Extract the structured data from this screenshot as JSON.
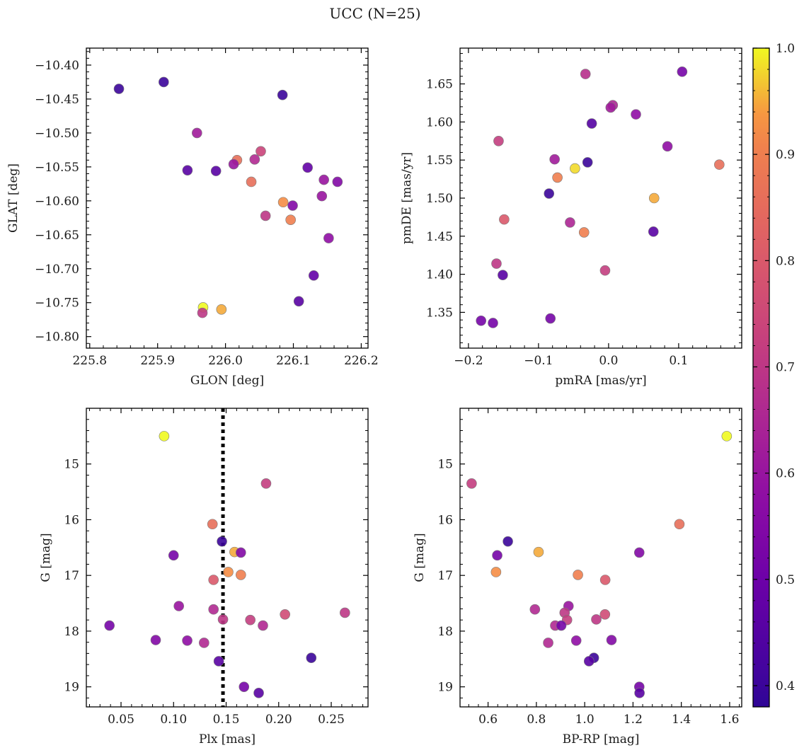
{
  "figure": {
    "suptitle": "UCC (N=25)"
  },
  "colormap": {
    "name": "plasma",
    "min": 0.38,
    "max": 1.0
  },
  "chart_data": [
    {
      "id": "panel-glon-glat",
      "type": "scatter",
      "xlabel": "GLON [deg]",
      "ylabel": "GLAT [deg]",
      "xlim": [
        225.795,
        226.21
      ],
      "ylim": [
        -10.817,
        -10.375
      ],
      "xticks": [
        225.8,
        225.9,
        226.0,
        226.1,
        226.2
      ],
      "xtick_labels": [
        "225.8",
        "225.9",
        "226.0",
        "226.1",
        "226.2"
      ],
      "yticks": [
        -10.8,
        -10.75,
        -10.7,
        -10.65,
        -10.6,
        -10.55,
        -10.5,
        -10.45,
        -10.4
      ],
      "ytick_labels": [
        "−10.80",
        "−10.75",
        "−10.70",
        "−10.65",
        "−10.60",
        "−10.55",
        "−10.50",
        "−10.45",
        "−10.40"
      ],
      "points": [
        {
          "x": 225.843,
          "y": -10.435,
          "c": 0.4
        },
        {
          "x": 225.909,
          "y": -10.425,
          "c": 0.4
        },
        {
          "x": 226.084,
          "y": -10.444,
          "c": 0.4
        },
        {
          "x": 225.958,
          "y": -10.5,
          "c": 0.62
        },
        {
          "x": 226.052,
          "y": -10.527,
          "c": 0.74
        },
        {
          "x": 226.017,
          "y": -10.54,
          "c": 0.86
        },
        {
          "x": 226.043,
          "y": -10.539,
          "c": 0.66
        },
        {
          "x": 226.012,
          "y": -10.546,
          "c": 0.6
        },
        {
          "x": 225.944,
          "y": -10.555,
          "c": 0.46
        },
        {
          "x": 225.986,
          "y": -10.556,
          "c": 0.46
        },
        {
          "x": 226.121,
          "y": -10.551,
          "c": 0.48
        },
        {
          "x": 226.145,
          "y": -10.569,
          "c": 0.6
        },
        {
          "x": 226.165,
          "y": -10.572,
          "c": 0.55
        },
        {
          "x": 226.038,
          "y": -10.572,
          "c": 0.86
        },
        {
          "x": 226.142,
          "y": -10.593,
          "c": 0.6
        },
        {
          "x": 226.085,
          "y": -10.602,
          "c": 0.93
        },
        {
          "x": 226.099,
          "y": -10.607,
          "c": 0.55
        },
        {
          "x": 226.059,
          "y": -10.622,
          "c": 0.7
        },
        {
          "x": 226.096,
          "y": -10.628,
          "c": 0.9
        },
        {
          "x": 226.152,
          "y": -10.655,
          "c": 0.58
        },
        {
          "x": 226.13,
          "y": -10.71,
          "c": 0.48
        },
        {
          "x": 226.108,
          "y": -10.748,
          "c": 0.46
        },
        {
          "x": 225.967,
          "y": -10.757,
          "c": 1.0
        },
        {
          "x": 225.994,
          "y": -10.76,
          "c": 0.95
        },
        {
          "x": 225.966,
          "y": -10.765,
          "c": 0.7
        }
      ]
    },
    {
      "id": "panel-pm",
      "type": "scatter",
      "xlabel": "pmRA [mas/yr]",
      "ylabel": "pmDE [mas/yr]",
      "xlim": [
        -0.212,
        0.19
      ],
      "ylim": [
        1.303,
        1.697
      ],
      "xticks": [
        -0.2,
        -0.1,
        0.0,
        0.1
      ],
      "xtick_labels": [
        "−0.2",
        "−0.1",
        "0.0",
        "0.1"
      ],
      "yticks": [
        1.35,
        1.4,
        1.45,
        1.5,
        1.55,
        1.6,
        1.65
      ],
      "ytick_labels": [
        "1.35",
        "1.40",
        "1.45",
        "1.50",
        "1.55",
        "1.60",
        "1.65"
      ],
      "points": [
        {
          "x": 0.105,
          "y": 1.666,
          "c": 0.52
        },
        {
          "x": -0.033,
          "y": 1.663,
          "c": 0.68
        },
        {
          "x": 0.006,
          "y": 1.622,
          "c": 0.65
        },
        {
          "x": 0.003,
          "y": 1.619,
          "c": 0.62
        },
        {
          "x": 0.039,
          "y": 1.61,
          "c": 0.58
        },
        {
          "x": -0.024,
          "y": 1.598,
          "c": 0.45
        },
        {
          "x": -0.157,
          "y": 1.575,
          "c": 0.72
        },
        {
          "x": 0.084,
          "y": 1.568,
          "c": 0.58
        },
        {
          "x": -0.077,
          "y": 1.551,
          "c": 0.62
        },
        {
          "x": -0.03,
          "y": 1.547,
          "c": 0.4
        },
        {
          "x": 0.158,
          "y": 1.544,
          "c": 0.86
        },
        {
          "x": -0.048,
          "y": 1.539,
          "c": 0.98
        },
        {
          "x": -0.073,
          "y": 1.527,
          "c": 0.9
        },
        {
          "x": -0.085,
          "y": 1.506,
          "c": 0.4
        },
        {
          "x": 0.065,
          "y": 1.5,
          "c": 0.95
        },
        {
          "x": -0.149,
          "y": 1.472,
          "c": 0.8
        },
        {
          "x": -0.055,
          "y": 1.468,
          "c": 0.65
        },
        {
          "x": 0.064,
          "y": 1.456,
          "c": 0.46
        },
        {
          "x": -0.035,
          "y": 1.455,
          "c": 0.9
        },
        {
          "x": -0.16,
          "y": 1.414,
          "c": 0.7
        },
        {
          "x": -0.005,
          "y": 1.405,
          "c": 0.72
        },
        {
          "x": -0.151,
          "y": 1.399,
          "c": 0.46
        },
        {
          "x": -0.083,
          "y": 1.342,
          "c": 0.52
        },
        {
          "x": -0.182,
          "y": 1.339,
          "c": 0.52
        },
        {
          "x": -0.165,
          "y": 1.336,
          "c": 0.52
        }
      ]
    },
    {
      "id": "panel-plx-g",
      "type": "scatter",
      "xlabel": "Plx [mas]",
      "ylabel": "G [mag]",
      "xlim": [
        0.017,
        0.285
      ],
      "ylim": [
        19.36,
        14.0
      ],
      "y_inverted": true,
      "xticks": [
        0.05,
        0.1,
        0.15,
        0.2,
        0.25
      ],
      "xtick_labels": [
        "0.05",
        "0.10",
        "0.15",
        "0.20",
        "0.25"
      ],
      "yticks": [
        15,
        16,
        17,
        18,
        19
      ],
      "ytick_labels": [
        "15",
        "16",
        "17",
        "18",
        "19"
      ],
      "vline": {
        "x": 0.147,
        "style": "dotted"
      },
      "points": [
        {
          "x": 0.091,
          "y": 14.5,
          "c": 1.0
        },
        {
          "x": 0.188,
          "y": 15.35,
          "c": 0.72
        },
        {
          "x": 0.137,
          "y": 16.08,
          "c": 0.86
        },
        {
          "x": 0.146,
          "y": 16.39,
          "c": 0.4
        },
        {
          "x": 0.158,
          "y": 16.58,
          "c": 0.95
        },
        {
          "x": 0.164,
          "y": 16.59,
          "c": 0.55
        },
        {
          "x": 0.1,
          "y": 16.64,
          "c": 0.52
        },
        {
          "x": 0.152,
          "y": 16.94,
          "c": 0.93
        },
        {
          "x": 0.164,
          "y": 16.99,
          "c": 0.9
        },
        {
          "x": 0.138,
          "y": 17.08,
          "c": 0.8
        },
        {
          "x": 0.105,
          "y": 17.55,
          "c": 0.6
        },
        {
          "x": 0.138,
          "y": 17.61,
          "c": 0.66
        },
        {
          "x": 0.206,
          "y": 17.7,
          "c": 0.76
        },
        {
          "x": 0.263,
          "y": 17.67,
          "c": 0.7
        },
        {
          "x": 0.147,
          "y": 17.79,
          "c": 0.7
        },
        {
          "x": 0.173,
          "y": 17.8,
          "c": 0.72
        },
        {
          "x": 0.185,
          "y": 17.9,
          "c": 0.66
        },
        {
          "x": 0.039,
          "y": 17.9,
          "c": 0.52
        },
        {
          "x": 0.083,
          "y": 18.16,
          "c": 0.55
        },
        {
          "x": 0.113,
          "y": 18.17,
          "c": 0.58
        },
        {
          "x": 0.129,
          "y": 18.21,
          "c": 0.66
        },
        {
          "x": 0.231,
          "y": 18.48,
          "c": 0.4
        },
        {
          "x": 0.143,
          "y": 18.54,
          "c": 0.46
        },
        {
          "x": 0.167,
          "y": 19.0,
          "c": 0.52
        },
        {
          "x": 0.181,
          "y": 19.11,
          "c": 0.46
        }
      ]
    },
    {
      "id": "panel-cmd",
      "type": "scatter",
      "xlabel": "BP-RP [mag]",
      "ylabel": "G [mag]",
      "xlim": [
        0.484,
        1.65
      ],
      "ylim": [
        19.36,
        14.0
      ],
      "y_inverted": true,
      "xticks": [
        0.6,
        0.8,
        1.0,
        1.2,
        1.4,
        1.6
      ],
      "xtick_labels": [
        "0.6",
        "0.8",
        "1.0",
        "1.2",
        "1.4",
        "1.6"
      ],
      "yticks": [
        15,
        16,
        17,
        18,
        19
      ],
      "ytick_labels": [
        "15",
        "16",
        "17",
        "18",
        "19"
      ],
      "points": [
        {
          "x": 1.588,
          "y": 14.5,
          "c": 1.0
        },
        {
          "x": 0.532,
          "y": 15.35,
          "c": 0.72
        },
        {
          "x": 1.392,
          "y": 16.08,
          "c": 0.86
        },
        {
          "x": 0.682,
          "y": 16.39,
          "c": 0.4
        },
        {
          "x": 0.809,
          "y": 16.58,
          "c": 0.95
        },
        {
          "x": 1.226,
          "y": 16.59,
          "c": 0.55
        },
        {
          "x": 0.638,
          "y": 16.64,
          "c": 0.52
        },
        {
          "x": 0.633,
          "y": 16.94,
          "c": 0.93
        },
        {
          "x": 0.972,
          "y": 16.99,
          "c": 0.9
        },
        {
          "x": 1.085,
          "y": 17.08,
          "c": 0.8
        },
        {
          "x": 0.933,
          "y": 17.55,
          "c": 0.6
        },
        {
          "x": 0.794,
          "y": 17.61,
          "c": 0.66
        },
        {
          "x": 1.084,
          "y": 17.7,
          "c": 0.76
        },
        {
          "x": 0.917,
          "y": 17.67,
          "c": 0.7
        },
        {
          "x": 1.048,
          "y": 17.79,
          "c": 0.7
        },
        {
          "x": 0.927,
          "y": 17.8,
          "c": 0.72
        },
        {
          "x": 0.878,
          "y": 17.9,
          "c": 0.66
        },
        {
          "x": 0.903,
          "y": 17.9,
          "c": 0.52
        },
        {
          "x": 1.111,
          "y": 18.16,
          "c": 0.55
        },
        {
          "x": 0.965,
          "y": 18.17,
          "c": 0.58
        },
        {
          "x": 0.849,
          "y": 18.21,
          "c": 0.66
        },
        {
          "x": 1.038,
          "y": 18.48,
          "c": 0.4
        },
        {
          "x": 1.018,
          "y": 18.54,
          "c": 0.46
        },
        {
          "x": 1.226,
          "y": 19.0,
          "c": 0.52
        },
        {
          "x": 1.227,
          "y": 19.11,
          "c": 0.46
        }
      ]
    }
  ],
  "colorbar": {
    "ticks": [
      0.4,
      0.5,
      0.6,
      0.7,
      0.8,
      0.9,
      1.0
    ],
    "tick_labels": [
      "0.4",
      "0.5",
      "0.6",
      "0.7",
      "0.8",
      "0.9",
      "1.0"
    ]
  }
}
